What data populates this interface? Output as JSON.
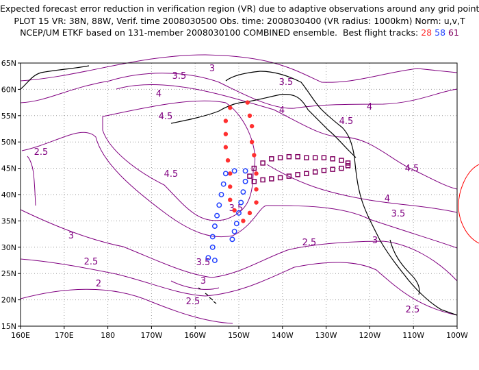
{
  "title": {
    "line1": "Expected forecast error reduction in verification region (VR) due to adaptive observations around any grid point.",
    "line2": "PLOT 15 VR: 38N, 88W, Verif. time 2008030500 Obs. time: 2008030400 (VR radius: 1000km) Norm: u,v,T",
    "line3_prefix": "NCEP/UM ETKF based on 131-member 2008030100 COMBINED ensemble.  Best flight tracks:",
    "track_28": "28",
    "track_58": "58",
    "track_61": "61"
  },
  "axes": {
    "lon_ticks": [
      "160E",
      "170E",
      "180",
      "170W",
      "160W",
      "150W",
      "140W",
      "130W",
      "120W",
      "110W",
      "100W"
    ],
    "lat_ticks": [
      "15N",
      "20N",
      "25N",
      "30N",
      "35N",
      "40N",
      "45N",
      "50N",
      "55N",
      "60N",
      "65N"
    ]
  },
  "contour_labels": [
    "3.5",
    "3",
    "3.5",
    "4",
    "4",
    "4",
    "4.5",
    "4.5",
    "4.5",
    "4.5",
    "4",
    "3.5",
    "3.5",
    "3",
    "3",
    "2.5",
    "2.5",
    "2.5",
    "2",
    "3",
    "3.5",
    "2.5",
    "2.5"
  ],
  "colors": {
    "contour": "#800080",
    "track_28": "#ff3030",
    "track_58": "#2040ff",
    "track_61": "#800060",
    "coast": "#000000",
    "grid": "#999999",
    "vr_circle": "#ff0000"
  },
  "tracks": {
    "t28": [
      [
        -148,
        57.5
      ],
      [
        -147.5,
        55
      ],
      [
        -147,
        53
      ],
      [
        -147,
        50
      ],
      [
        -146.5,
        47.5
      ],
      [
        -146,
        44
      ],
      [
        -146,
        41
      ],
      [
        -146,
        38.5
      ],
      [
        -147.5,
        36.5
      ],
      [
        -149,
        35
      ],
      [
        -151,
        37
      ],
      [
        -152,
        39
      ],
      [
        -152,
        41.5
      ],
      [
        -152,
        44
      ],
      [
        -152.5,
        46.5
      ],
      [
        -153,
        49
      ],
      [
        -153,
        51.5
      ],
      [
        -153,
        54
      ],
      [
        -152,
        56.5
      ]
    ],
    "t58": [
      [
        -155.5,
        27.5
      ],
      [
        -157,
        28
      ],
      [
        -156,
        30
      ],
      [
        -156,
        32
      ],
      [
        -155.5,
        34
      ],
      [
        -155,
        36
      ],
      [
        -154.5,
        38
      ],
      [
        -154,
        40
      ],
      [
        -153.5,
        42
      ],
      [
        -153,
        44
      ],
      [
        -151,
        44.5
      ],
      [
        -148.5,
        44.5
      ],
      [
        -148.5,
        42.5
      ],
      [
        -149,
        40.5
      ],
      [
        -149.5,
        38.5
      ],
      [
        -150,
        36.5
      ],
      [
        -150.5,
        34.5
      ],
      [
        -151,
        33
      ],
      [
        -151.5,
        31.5
      ]
    ],
    "t61": [
      [
        -146.5,
        45
      ],
      [
        -144.5,
        46
      ],
      [
        -142.5,
        46.8
      ],
      [
        -140.5,
        47
      ],
      [
        -138.5,
        47.2
      ],
      [
        -136.5,
        47.2
      ],
      [
        -134.5,
        47
      ],
      [
        -132.5,
        47
      ],
      [
        -130.5,
        47
      ],
      [
        -128.5,
        46.8
      ],
      [
        -126.5,
        46.5
      ],
      [
        -125,
        46
      ],
      [
        -125,
        45.5
      ],
      [
        -126.5,
        45
      ],
      [
        -128.5,
        44.8
      ],
      [
        -130.5,
        44.6
      ],
      [
        -132.5,
        44.3
      ],
      [
        -134.5,
        44
      ],
      [
        -136.5,
        43.8
      ],
      [
        -138.5,
        43.5
      ],
      [
        -140.5,
        43.2
      ],
      [
        -142.5,
        43
      ],
      [
        -144.5,
        42.8
      ],
      [
        -146.5,
        42.5
      ],
      [
        -147.5,
        43.5
      ]
    ]
  }
}
